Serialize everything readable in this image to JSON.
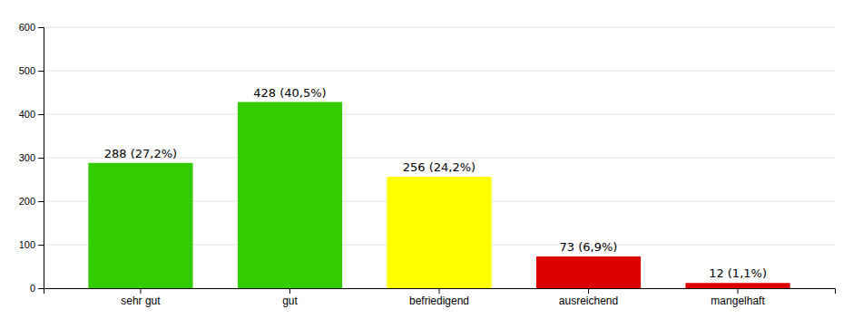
{
  "chart_data": {
    "type": "bar",
    "categories": [
      "sehr gut",
      "gut",
      "befriedigend",
      "ausreichend",
      "mangelhaft"
    ],
    "values": [
      288,
      428,
      256,
      73,
      12
    ],
    "value_labels": [
      "288 (27,2%)",
      "428 (40,5%)",
      "256 (24,2%)",
      "73 (6,9%)",
      "12 (1,1%)"
    ],
    "colors": [
      "#33cc00",
      "#33cc00",
      "#ffff00",
      "#dd0000",
      "#dd0000"
    ],
    "ylim": [
      0,
      600
    ],
    "yticks": [
      0,
      100,
      200,
      300,
      400,
      500,
      600
    ],
    "grid": true,
    "data_labels": true
  }
}
